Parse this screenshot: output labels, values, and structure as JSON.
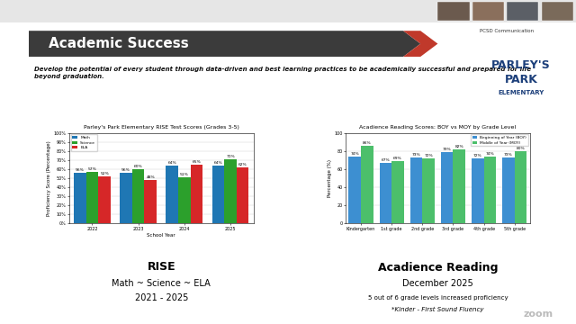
{
  "slide": {
    "title": "Academic Success",
    "subtitle_lines": [
      "Develop the potential of every student through data-driven and best learning practices to be academically successful and prepared for life",
      "beyond graduation."
    ],
    "logo_lines": [
      "PARLEY'S",
      "PARK",
      "ELEMENTARY"
    ],
    "meeting_label": "PCSD Communication",
    "app": "zoom",
    "captions": [
      {
        "heading": "RISE",
        "lines": [
          "Math ~ Science ~ ELA",
          "2021 - 2025"
        ]
      },
      {
        "heading": "Acadience Reading",
        "lines": [
          "December 2025",
          "5 out of 6 grade levels increased proficiency",
          "*Kinder - First Sound Fluency"
        ]
      }
    ]
  },
  "chart_data": [
    {
      "type": "bar",
      "title": "Parley's Park Elementary RISE Test Scores (Grades 3-5)",
      "x_label": "School Year",
      "y_label": "Proficiency Score (Percentage)",
      "categories": [
        "2022",
        "2023",
        "2024",
        "2025"
      ],
      "series": [
        {
          "name": "Math",
          "color": "#1f77b4",
          "values": [
            56,
            56,
            64,
            64
          ],
          "value_labels": [
            "56%",
            "56%",
            "64%",
            "64%"
          ]
        },
        {
          "name": "Science",
          "color": "#2ca02c",
          "values": [
            57,
            60,
            51,
            71
          ],
          "value_labels": [
            "57%",
            "60%",
            "51%",
            "71%"
          ]
        },
        {
          "name": "ELA",
          "color": "#d62728",
          "values": [
            52,
            48,
            65,
            62
          ],
          "value_labels": [
            "52%",
            "48%",
            "65%",
            "62%"
          ]
        }
      ],
      "ylim": [
        0,
        100
      ],
      "yticks": [
        {
          "value": 0,
          "label": "0%"
        },
        {
          "value": 10,
          "label": "10%"
        },
        {
          "value": 20,
          "label": "20%"
        },
        {
          "value": 30,
          "label": "30%"
        },
        {
          "value": 40,
          "label": "40%"
        },
        {
          "value": 50,
          "label": "50%"
        },
        {
          "value": 60,
          "label": "60%"
        },
        {
          "value": 70,
          "label": "70%"
        },
        {
          "value": 80,
          "label": "80%"
        },
        {
          "value": 90,
          "label": "90%"
        },
        {
          "value": 100,
          "label": "100%"
        }
      ],
      "grid": true,
      "legend": "upper left",
      "data_labels": true
    },
    {
      "type": "bar",
      "title": "Acadience Reading Scores: BOY vs MOY by Grade Level",
      "y_label": "Percentage (%)",
      "categories": [
        "Kindergarten",
        "1st grade",
        "2nd grade",
        "3rd grade",
        "4th grade",
        "5th grade"
      ],
      "series": [
        {
          "name": "Beginning of Year (BOY)",
          "color": "#3d8fd1",
          "values": [
            74,
            67,
            73,
            79,
            72,
            73
          ],
          "value_labels": [
            "74%",
            "67%",
            "73%",
            "79%",
            "72%",
            "73%"
          ]
        },
        {
          "name": "Middle of Year (MOY)",
          "color": "#4cbf6b",
          "values": [
            86,
            69,
            72,
            82,
            74,
            80
          ],
          "value_labels": [
            "86%",
            "69%",
            "72%",
            "82%",
            "74%",
            "80%"
          ]
        }
      ],
      "ylim": [
        0,
        100
      ],
      "yticks": [
        0,
        20,
        40,
        60,
        80,
        100
      ],
      "grid": true,
      "legend": "upper right",
      "data_labels": true
    }
  ]
}
